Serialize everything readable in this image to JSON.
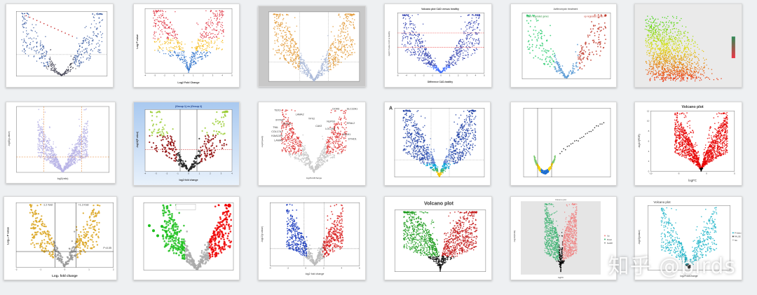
{
  "watermark": "知乎 @birds",
  "tiles": [
    {
      "id": "r1c1",
      "type": "scatter",
      "title": "",
      "xlabel": "",
      "ylabel": ""
    },
    {
      "id": "r1c2",
      "type": "scatter",
      "title": "",
      "xlabel": "Log2 Fold Change",
      "ylabel": "Log P value",
      "xticks": [
        "-4",
        "-3",
        "-2",
        "-1",
        "0",
        "1",
        "2",
        "3",
        "4",
        "5"
      ]
    },
    {
      "id": "r1c3",
      "type": "scatter",
      "title": "",
      "xlabel": "",
      "ylabel": ""
    },
    {
      "id": "r1c4",
      "type": "scatter",
      "title": "Volcano plot CAD versus healthy",
      "xlabel": "Difference CAD-healthy",
      "ylabel": "-log10 P value CAD vs healthy",
      "xticks": [
        "-5",
        "-4",
        "-3",
        "-2",
        "-1",
        "0",
        "1",
        "2",
        "3",
        "4",
        "5"
      ]
    },
    {
      "id": "r1c5",
      "type": "scatter",
      "title": "Azithromycin treatment",
      "xlabel": "",
      "ylabel": "",
      "annotations": [
        "down-regulated genes",
        "up-regulated genes"
      ]
    },
    {
      "id": "r1c6",
      "type": "scatter",
      "title": "",
      "xlabel": "",
      "ylabel": ""
    },
    {
      "id": "r2c1",
      "type": "scatter",
      "title": "",
      "xlabel": "log2(ratio)",
      "ylabel": "-log10(p-value)"
    },
    {
      "id": "r2c2",
      "type": "scatter",
      "title": "(Group 1) vs (Group 2)",
      "xlabel": "log2 fold change",
      "ylabel": "-log10(P value)",
      "xticks": [
        "-4",
        "-3",
        "-2",
        "-1",
        "0",
        "1",
        "2",
        "3",
        "4"
      ]
    },
    {
      "id": "r2c3",
      "type": "scatter",
      "title": "",
      "xlabel": "log2FoldChange",
      "ylabel": "-log10(padj)",
      "gene_labels": [
        "TEX3",
        "LAMA2",
        "TPX2",
        "DOK6",
        "SLC22A1",
        "IFITM1",
        "IFITM3",
        "TNIL",
        "COL17A1",
        "KIAA1199",
        "LAMA3",
        "NUP93",
        "CAV2",
        "LOC285",
        "VASH1",
        "DTHD1",
        "ERAL2"
      ]
    },
    {
      "id": "r2c4",
      "type": "scatter",
      "title": "",
      "xlabel": "",
      "ylabel": "",
      "panel_letter": "A"
    },
    {
      "id": "r2c5",
      "type": "scatter",
      "title": "",
      "xlabel": "",
      "ylabel": ""
    },
    {
      "id": "r2c6",
      "type": "scatter",
      "title": "Volcano plot",
      "xlabel": "logFC",
      "ylabel": "-log10(FDR)",
      "xticks": [
        "-10",
        "-5",
        "0",
        "5"
      ],
      "yticks": [
        "0",
        "2",
        "4",
        "6",
        "8",
        "10",
        "12"
      ]
    },
    {
      "id": "r3c1",
      "type": "scatter",
      "title": "",
      "xlabel": "Log₂ fold change",
      "ylabel": "Log₁₀ P value",
      "xticks": [
        "-2",
        "-1",
        "0",
        "1",
        "2"
      ],
      "annotations": [
        "-1.2-fold",
        "+1.2-fold",
        "P=0.05"
      ]
    },
    {
      "id": "r3c2",
      "type": "scatter",
      "title": "",
      "xlabel": "",
      "ylabel": ""
    },
    {
      "id": "r3c3",
      "type": "scatter",
      "title": "",
      "xlabel": "log2 fold change",
      "ylabel": "-log10(p value)",
      "xticks": [
        "-4",
        "-2",
        "0",
        "2",
        "4",
        "6"
      ]
    },
    {
      "id": "r3c4",
      "type": "scatter",
      "title": "Volcano plot",
      "xlabel": "",
      "ylabel": ""
    },
    {
      "id": "r3c5",
      "type": "scatter",
      "title": "Volcano plot",
      "xlabel": "logFC",
      "ylabel": "-log10(FDR)",
      "legend": [
        "Up",
        "Down",
        "NoDiff"
      ]
    },
    {
      "id": "r3c6",
      "type": "scatter",
      "title": "Volcano plot",
      "xlabel": "log2FoldChange",
      "ylabel": "-log10(pvalue)",
      "legend": [
        "P-Value",
        "FALSE",
        "NA"
      ]
    }
  ]
}
